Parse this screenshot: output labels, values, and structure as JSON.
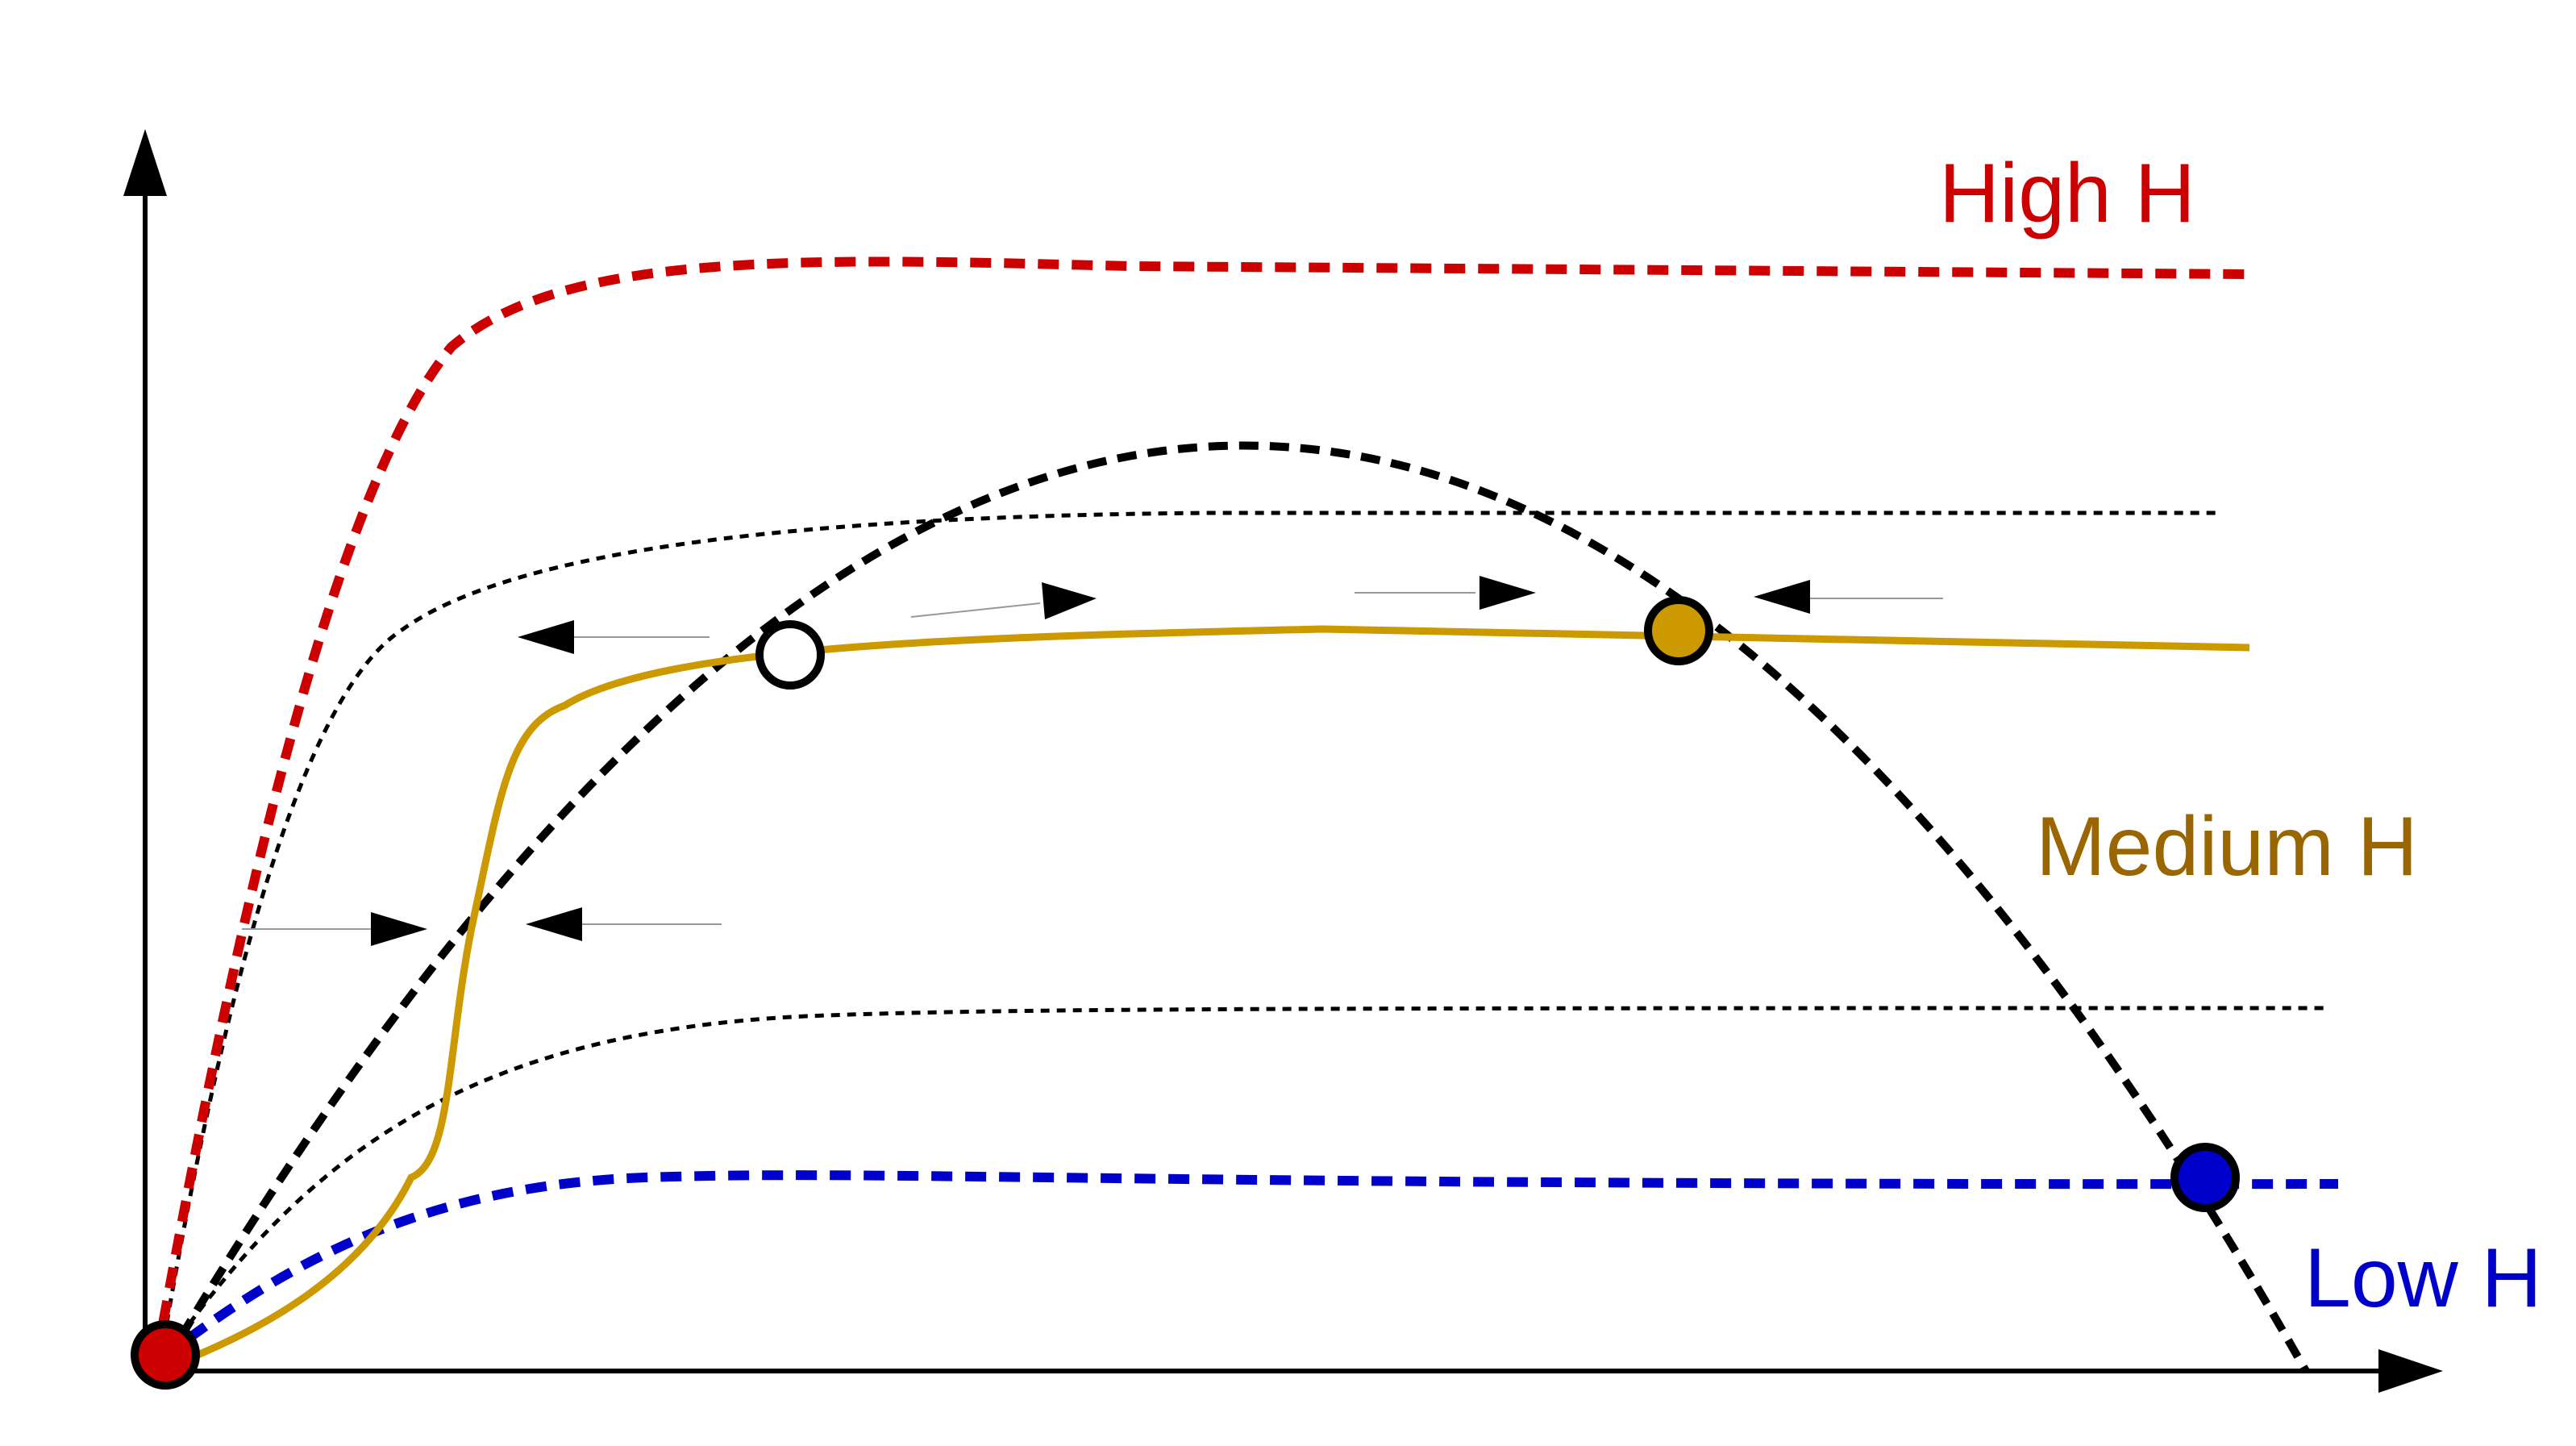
{
  "labels": {
    "high": "High H",
    "medium": "Medium H",
    "low": "Low H"
  },
  "colors": {
    "high": "#cc0000",
    "medium": "#cc9900",
    "medium_label": "#996600",
    "low": "#0000cc",
    "axis": "#000000",
    "guide_arrow": "#999999"
  },
  "points": {
    "unstable": "open circle",
    "stable_medium": "filled gold circle",
    "stable_low": "filled blue circle",
    "origin": "filled red circle"
  }
}
